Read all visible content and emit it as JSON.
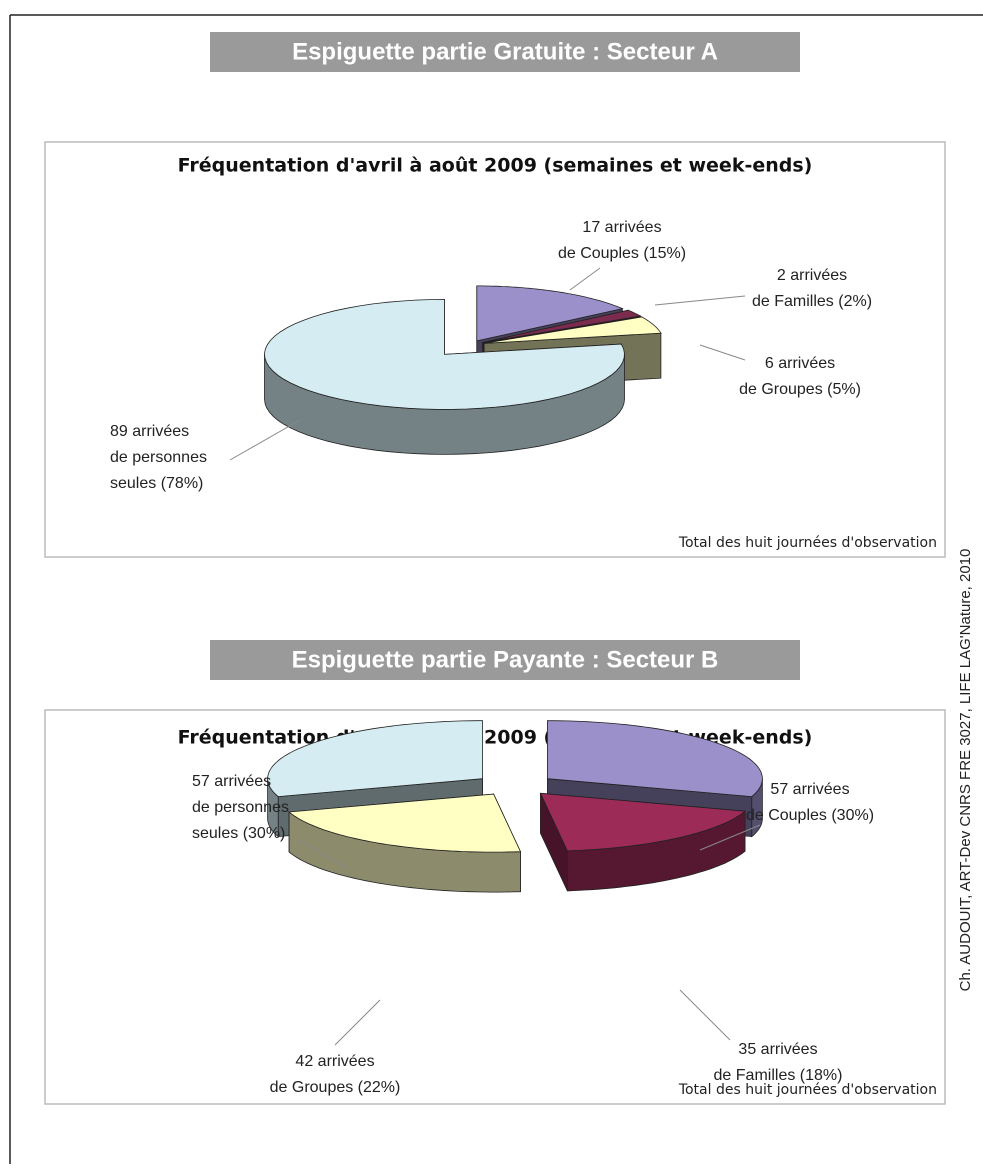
{
  "credit": "Ch. AUDOUIT, ART-Dev CNRS FRE 3027, LIFE LAG'Nature, 2010",
  "chart_data": [
    {
      "type": "pie",
      "heading": "Espiguette partie Gratuite : Secteur A",
      "title": "Fréquentation d'avril à août 2009 (semaines et week-ends)",
      "note": "Total des huit journées d'observation",
      "labels": [
        [
          "17 arrivées",
          "de Couples (15%)"
        ],
        [
          "2 arrivées",
          "de Familles (2%)"
        ],
        [
          "6 arrivées",
          "de Groupes (5%)"
        ],
        [
          "89 arrivées",
          "de personnes",
          "seules (78%)"
        ]
      ],
      "values": [
        15,
        2,
        5,
        78
      ],
      "colors": [
        "#9b90c9",
        "#7b2c4e",
        "#ffffc4",
        "#d5edf2"
      ]
    },
    {
      "type": "pie",
      "heading": "Espiguette partie Payante : Secteur B",
      "title": "Fréquentation d'avril à août 2009 (semaines et week-ends)",
      "note": "Total des huit journées d'observation",
      "labels": [
        [
          "57 arrivées",
          "de Couples (30%)"
        ],
        [
          "35 arrivées",
          "de Familles (18%)"
        ],
        [
          "42 arrivées",
          "de Groupes (22%)"
        ],
        [
          "57 arrivées",
          "de personnes",
          "seules (30%)"
        ]
      ],
      "values": [
        30,
        18,
        22,
        30
      ],
      "colors": [
        "#9b90c9",
        "#9c2b58",
        "#ffffc4",
        "#d5edf2"
      ]
    }
  ]
}
